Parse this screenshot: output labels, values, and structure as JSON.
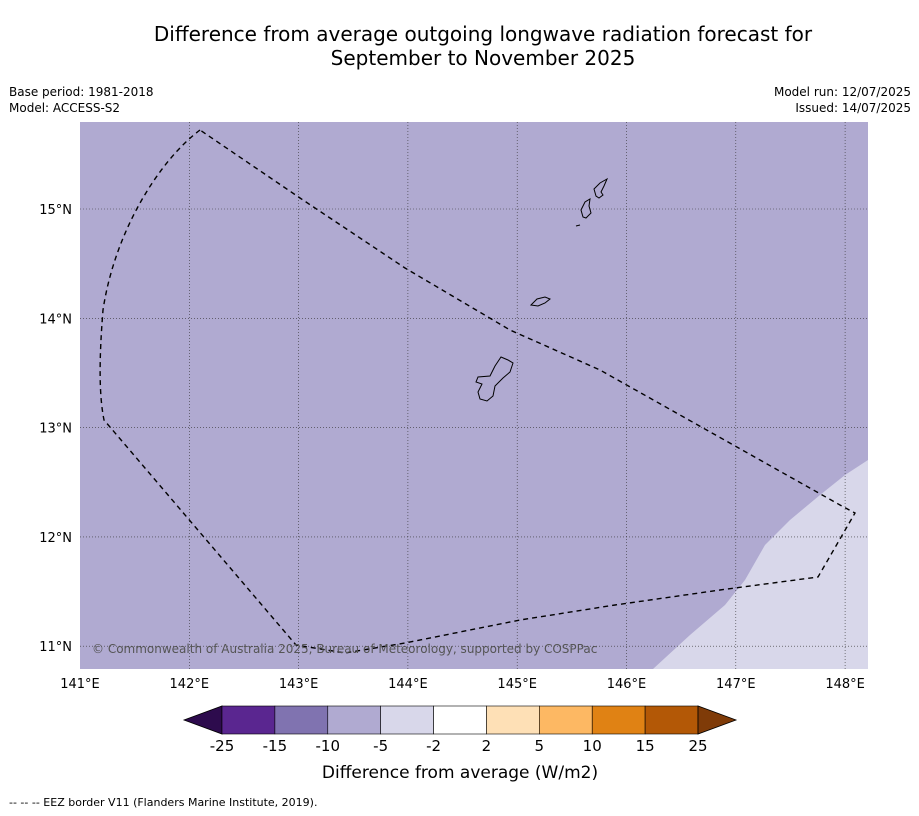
{
  "title_line1": "Difference from average outgoing longwave radiation forecast for",
  "title_line2": "September to November 2025",
  "base_period": "Base period: 1981-2018",
  "model": "Model: ACCESS-S2",
  "model_run": "Model run: 12/07/2025",
  "issued": "Issued: 14/07/2025",
  "copyright": "© Commonwealth of Australia 2025, Bureau of Meteorology, supported by COSPPac",
  "colorbar_title": "Difference from average (W/m2)",
  "footnote": "--  --  -- EEZ border V11 (Flanders Marine Institute, 2019).",
  "chart_data": {
    "type": "heatmap",
    "x_ticks": [
      "141°E",
      "142°E",
      "143°E",
      "144°E",
      "145°E",
      "146°E",
      "147°E",
      "148°E"
    ],
    "y_ticks": [
      "15°N",
      "14°N",
      "13°N",
      "12°N",
      "11°N"
    ],
    "x_range": [
      141.0,
      148.2
    ],
    "y_range": [
      10.8,
      15.8
    ],
    "grid": true,
    "colorbar": {
      "labels": [
        "-25",
        "-15",
        "-10",
        "-5",
        "-2",
        "2",
        "5",
        "10",
        "15",
        "25"
      ],
      "colors": [
        "#2d0b4d",
        "#5a2690",
        "#8073b0",
        "#b0aad1",
        "#d8d7ea",
        "#ffffff",
        "#fee0b6",
        "#fdb863",
        "#e08214",
        "#b35806",
        "#7f3b08"
      ]
    },
    "regions": [
      {
        "category": "-10 to -5",
        "color": "#b0aad1",
        "area": "most of map"
      },
      {
        "category": "-5 to -2",
        "color": "#d8d7ea",
        "area": "south-east corner"
      }
    ]
  }
}
